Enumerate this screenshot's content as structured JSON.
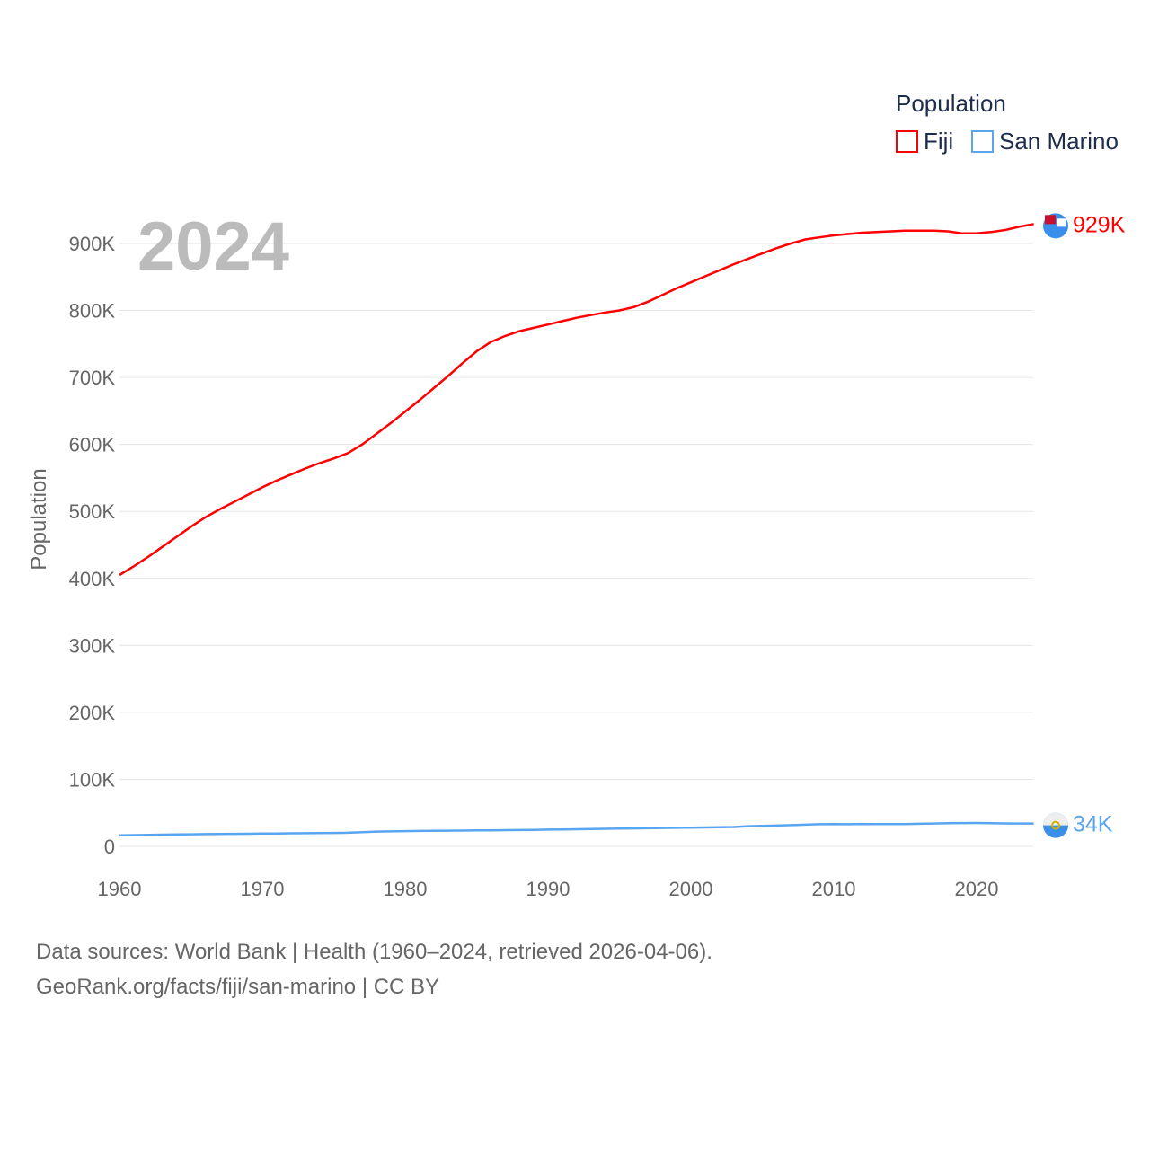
{
  "chart_data": {
    "type": "line",
    "title": "",
    "year_label": "2024",
    "ylabel": "Population",
    "xlabel": "",
    "xlim": [
      1960,
      2024
    ],
    "ylim": [
      0,
      900000
    ],
    "x_ticks": [
      "1960",
      "1970",
      "1980",
      "1990",
      "2000",
      "2010",
      "2020"
    ],
    "y_ticks": [
      "0",
      "100K",
      "200K",
      "300K",
      "400K",
      "500K",
      "600K",
      "700K",
      "800K",
      "900K"
    ],
    "grid": true,
    "legend": {
      "title": "Population",
      "position": "top-right"
    },
    "x": [
      1960,
      1961,
      1962,
      1963,
      1964,
      1965,
      1966,
      1967,
      1968,
      1969,
      1970,
      1971,
      1972,
      1973,
      1974,
      1975,
      1976,
      1977,
      1978,
      1979,
      1980,
      1981,
      1982,
      1983,
      1984,
      1985,
      1986,
      1987,
      1988,
      1989,
      1990,
      1991,
      1992,
      1993,
      1994,
      1995,
      1996,
      1997,
      1998,
      1999,
      2000,
      2001,
      2002,
      2003,
      2004,
      2005,
      2006,
      2007,
      2008,
      2009,
      2010,
      2011,
      2012,
      2013,
      2014,
      2015,
      2016,
      2017,
      2018,
      2019,
      2020,
      2021,
      2022,
      2023,
      2024
    ],
    "series": [
      {
        "name": "Fiji",
        "color": "#ff0000",
        "end_label": "929K",
        "flag": "fiji-flag",
        "values": [
          405,
          418,
          432,
          447,
          462,
          477,
          491,
          503,
          514,
          525,
          536,
          546,
          555,
          564,
          572,
          579,
          587,
          600,
          616,
          632,
          649,
          666,
          684,
          702,
          721,
          739,
          753,
          762,
          769,
          774,
          779,
          784,
          789,
          793,
          797,
          800,
          805,
          813,
          823,
          833,
          842,
          851,
          860,
          869,
          877,
          885,
          893,
          900,
          906,
          909,
          912,
          914,
          916,
          917,
          918,
          919,
          919,
          919,
          918,
          915,
          915,
          917,
          920,
          925,
          929
        ]
      },
      {
        "name": "San Marino",
        "color": "#5aa5ef",
        "end_label": "34K",
        "flag": "san-marino-flag",
        "values": [
          16.5,
          16.8,
          17.1,
          17.4,
          17.7,
          18,
          18.2,
          18.4,
          18.6,
          18.8,
          19,
          19.2,
          19.4,
          19.6,
          19.8,
          20,
          20.2,
          21,
          22,
          22.3,
          22.6,
          22.9,
          23.1,
          23.3,
          23.5,
          23.7,
          23.9,
          24.1,
          24.3,
          24.6,
          24.9,
          25.2,
          25.5,
          25.8,
          26.1,
          26.4,
          26.7,
          27,
          27.3,
          27.6,
          27.9,
          28.2,
          28.5,
          28.8,
          30,
          30.5,
          31,
          31.7,
          32.3,
          33,
          33.2,
          33,
          33.4,
          33.2,
          33.1,
          33.3,
          33.6,
          34,
          34.5,
          34.7,
          34.9,
          34.6,
          34.2,
          34,
          34
        ]
      }
    ],
    "y_unit": "thousands"
  },
  "footer": {
    "line1": "Data sources: World Bank | Health (1960–2024, retrieved 2026-04-06).",
    "line2": "GeoRank.org/facts/fiji/san-marino | CC BY"
  }
}
